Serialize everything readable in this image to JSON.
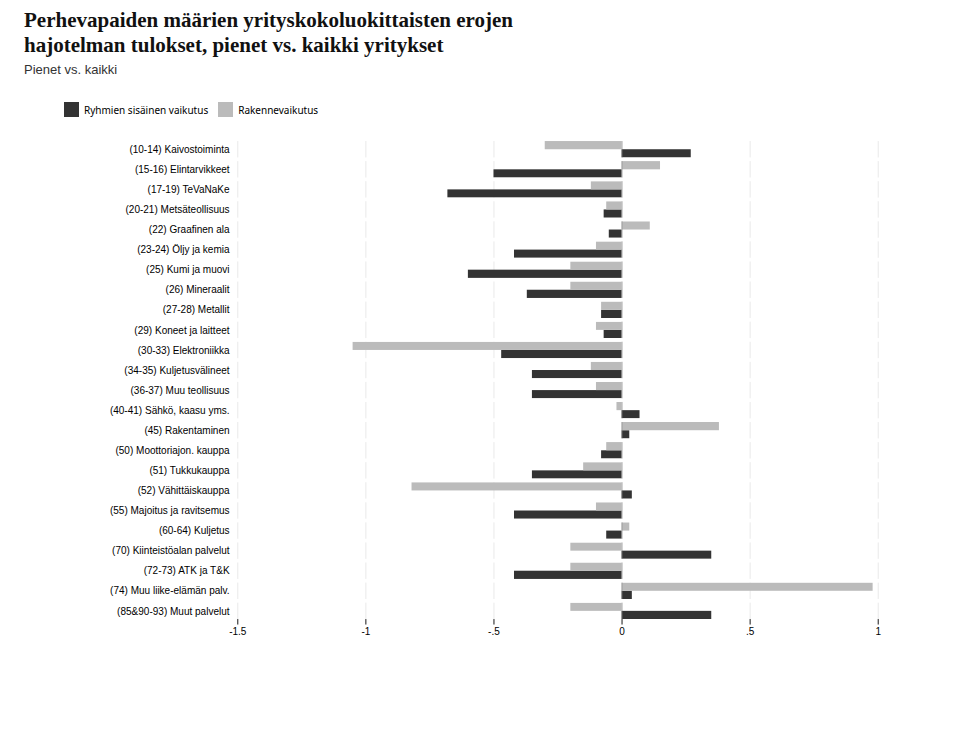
{
  "chart_data": {
    "type": "bar",
    "orientation": "horizontal",
    "title": "Perhevapaiden määrien yrityskokoluokittaisten erojen\nhajotelman tulokset, pienet vs. kaikki yritykset",
    "subtitle": "Pienet vs. kaikki",
    "categories": [
      "(10-14) Kaivostoiminta",
      "(15-16) Elintarvikkeet",
      "(17-19) TeVaNaKe",
      "(20-21) Metsäteollisuus",
      "(22) Graafinen ala",
      "(23-24) Öljy ja kemia",
      "(25) Kumi ja muovi",
      "(26) Mineraalit",
      "(27-28) Metallit",
      "(29) Koneet ja laitteet",
      "(30-33) Elektroniikka",
      "(34-35) Kuljetusvälineet",
      "(36-37) Muu teollisuus",
      "(40-41) Sähkö, kaasu yms.",
      "(45) Rakentaminen",
      "(50) Moottoriajon. kauppa",
      "(51) Tukkukauppa",
      "(52) Vähittäiskauppa",
      "(55) Majoitus ja ravitsemus",
      "(60-64) Kuljetus",
      "(70) Kiinteistöalan palvelut",
      "(72-73) ATK ja T&K",
      "(74) Muu liike-elämän palv.",
      "(85&90-93) Muut palvelut"
    ],
    "series": [
      {
        "name": "Ryhmien sisäinen vaikutus",
        "color": "#333333",
        "values": [
          0.27,
          -0.5,
          -0.68,
          -0.07,
          -0.05,
          -0.42,
          -0.6,
          -0.37,
          -0.08,
          -0.07,
          -0.47,
          -0.35,
          -0.35,
          0.07,
          0.03,
          -0.08,
          -0.35,
          0.04,
          -0.42,
          -0.06,
          0.35,
          -0.42,
          0.04,
          0.35
        ]
      },
      {
        "name": "Rakennevaikutus",
        "color": "#bbbbbb",
        "values": [
          -0.3,
          0.15,
          -0.12,
          -0.06,
          0.11,
          -0.1,
          -0.2,
          -0.2,
          -0.08,
          -0.1,
          -1.05,
          -0.12,
          -0.1,
          -0.02,
          0.38,
          -0.06,
          -0.15,
          -0.82,
          -0.1,
          0.03,
          -0.2,
          -0.2,
          0.98,
          -0.2
        ]
      }
    ],
    "xlim": [
      -1.5,
      1.0
    ],
    "xticks": [
      -1.5,
      -1,
      {
        "value": -0.5,
        "label": "-.5"
      },
      0,
      {
        "value": 0.5,
        "label": ".5"
      },
      1
    ],
    "grid": true
  }
}
